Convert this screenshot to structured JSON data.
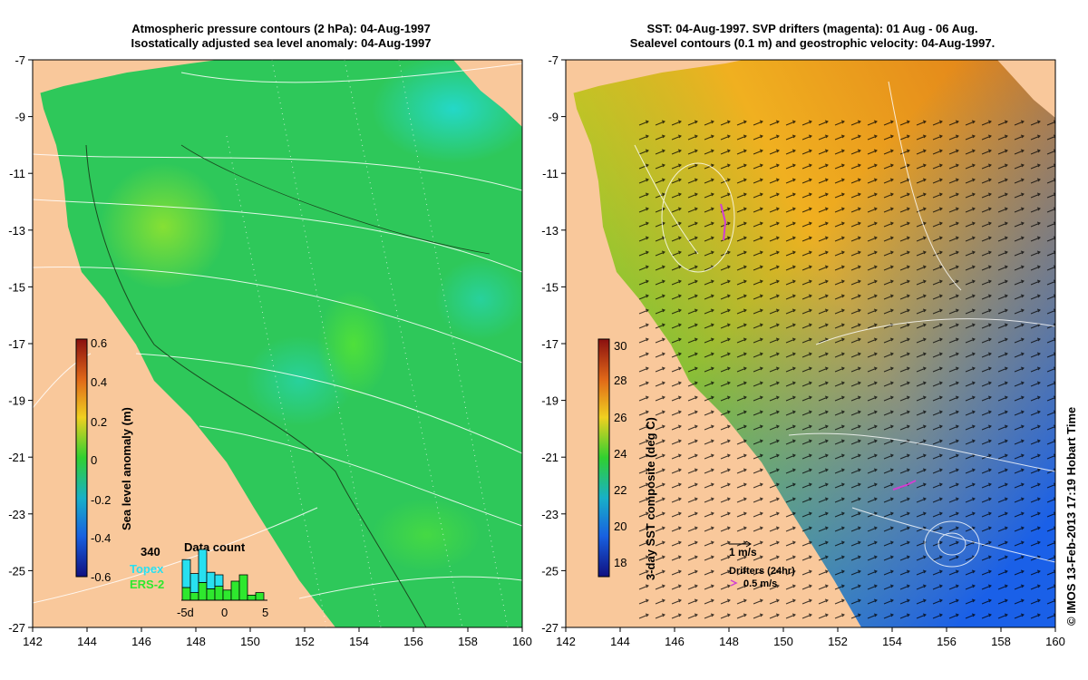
{
  "left_panel": {
    "title_line1": "Atmospheric pressure contours (2 hPa): 04-Aug-1997",
    "title_line2": "Isostatically adjusted sea level anomaly: 04-Aug-1997",
    "colorbar": {
      "label": "Sea level anomaly (m)",
      "ticks": [
        "0.6",
        "0.4",
        "0.2",
        "0",
        "-0.2",
        "-0.4",
        "-0.6"
      ]
    },
    "data_count": {
      "title": "Data count",
      "total": "340",
      "series": [
        "Topex",
        "ERS-2"
      ],
      "axis_ticks": [
        "-5d",
        "0",
        "5"
      ],
      "bars_topex": [
        22,
        15,
        26,
        13,
        9,
        0,
        0,
        0,
        0,
        0
      ],
      "bars_ers2": [
        10,
        6,
        14,
        9,
        11,
        8,
        15,
        20,
        4,
        6
      ]
    }
  },
  "right_panel": {
    "title_line1": "SST: 04-Aug-1997. SVP drifters (magenta): 01 Aug - 06 Aug.",
    "title_line2": "Sealevel contours (0.1 m) and geostrophic velocity: 04-Aug-1997.",
    "colorbar": {
      "label": "3-day SST composite (deg C)",
      "ticks": [
        "30",
        "28",
        "26",
        "24",
        "22",
        "20",
        "18"
      ]
    },
    "velocity_legend": "1 m/s",
    "drifter_legend_title": "Drifters (24hr)",
    "drifter_legend_speed": "0.5 m/s"
  },
  "axes": {
    "x_ticks": [
      "142",
      "144",
      "146",
      "148",
      "150",
      "152",
      "154",
      "156",
      "158",
      "160"
    ],
    "y_ticks": [
      "-7",
      "-9",
      "-11",
      "-13",
      "-15",
      "-17",
      "-19",
      "-21",
      "-23",
      "-25",
      "-27"
    ],
    "lon_range": [
      142,
      160
    ],
    "lat_range": [
      -27,
      -7
    ]
  },
  "credit": "© IMOS 13-Feb-2013 17:19 Hobart Time",
  "colors": {
    "land": "#f9c89b",
    "ocean_left": "#2ec85a",
    "sst_warm": "#e88a1c",
    "sst_cool": "#1e7fd8",
    "drifter": "#d040d0"
  }
}
